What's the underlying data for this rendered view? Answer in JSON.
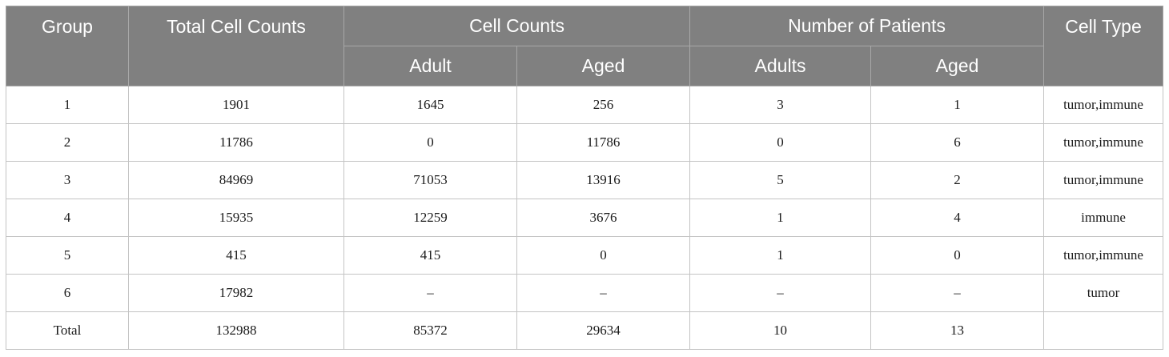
{
  "table": {
    "headers": {
      "group": "Group",
      "total_cell_counts": "Total Cell Counts",
      "cell_counts": "Cell Counts",
      "number_of_patients": "Number of Patients",
      "cell_type": "Cell Type",
      "cell_counts_adult": "Adult",
      "cell_counts_aged": "Aged",
      "patients_adults": "Adults",
      "patients_aged": "Aged"
    },
    "rows": [
      {
        "group": "1",
        "total": "1901",
        "adult_cells": "1645",
        "aged_cells": "256",
        "adult_patients": "3",
        "aged_patients": "1",
        "cell_type": "tumor,immune"
      },
      {
        "group": "2",
        "total": "11786",
        "adult_cells": "0",
        "aged_cells": "11786",
        "adult_patients": "0",
        "aged_patients": "6",
        "cell_type": "tumor,immune"
      },
      {
        "group": "3",
        "total": "84969",
        "adult_cells": "71053",
        "aged_cells": "13916",
        "adult_patients": "5",
        "aged_patients": "2",
        "cell_type": "tumor,immune"
      },
      {
        "group": "4",
        "total": "15935",
        "adult_cells": "12259",
        "aged_cells": "3676",
        "adult_patients": "1",
        "aged_patients": "4",
        "cell_type": "immune"
      },
      {
        "group": "5",
        "total": "415",
        "adult_cells": "415",
        "aged_cells": "0",
        "adult_patients": "1",
        "aged_patients": "0",
        "cell_type": "tumor,immune"
      },
      {
        "group": "6",
        "total": "17982",
        "adult_cells": "–",
        "aged_cells": "–",
        "adult_patients": "–",
        "aged_patients": "–",
        "cell_type": "tumor"
      },
      {
        "group": "Total",
        "total": "132988",
        "adult_cells": "85372",
        "aged_cells": "29634",
        "adult_patients": "10",
        "aged_patients": "13",
        "cell_type": ""
      }
    ]
  }
}
